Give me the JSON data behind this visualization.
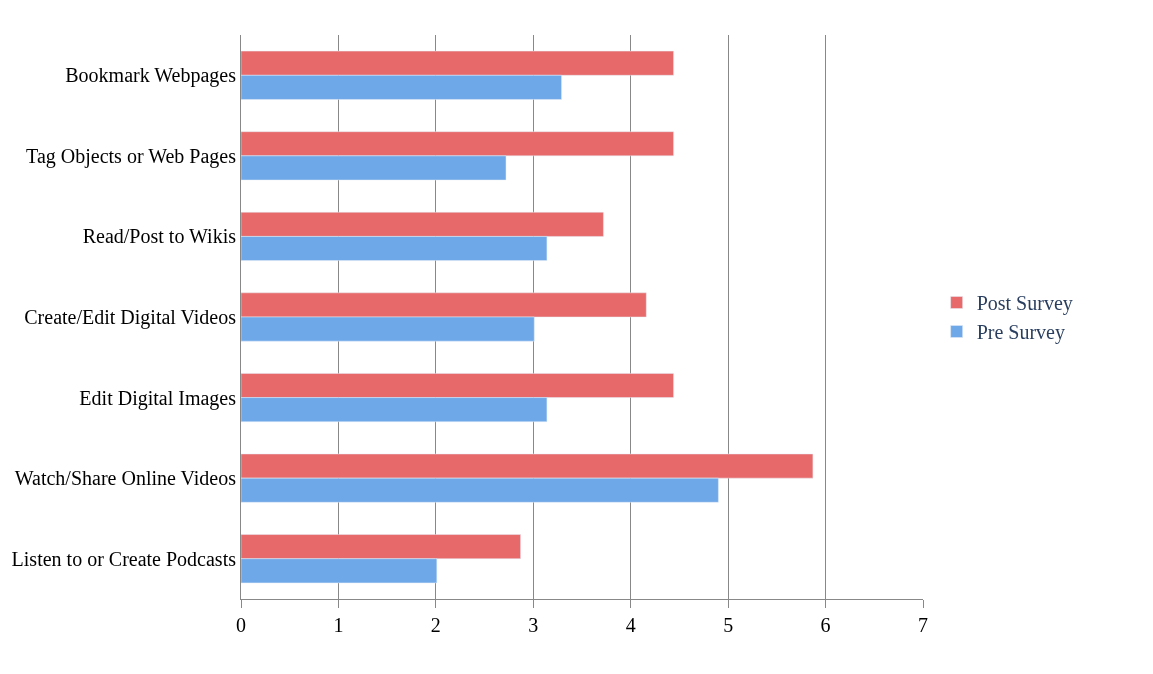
{
  "chart_data": {
    "type": "bar",
    "orientation": "horizontal",
    "categories": [
      "Bookmark Webpages",
      "Tag Objects or Web Pages",
      "Read/Post to Wikis",
      "Create/Edit Digital Videos",
      "Edit Digital Images",
      "Watch/Share Online Videos",
      "Listen to or Create Podcasts"
    ],
    "series": [
      {
        "name": "Post Survey",
        "color": "#e8696a",
        "values": [
          4.44,
          4.44,
          3.72,
          4.16,
          4.44,
          5.87,
          2.87
        ]
      },
      {
        "name": "Pre Survey",
        "color": "#6fa8e8",
        "values": [
          3.29,
          2.72,
          3.14,
          3.01,
          3.14,
          4.9,
          2.01
        ]
      }
    ],
    "xlim": [
      0,
      7
    ],
    "xticks": [
      0,
      1,
      2,
      3,
      4,
      5,
      6,
      7
    ],
    "grid": "x",
    "legend": "right"
  }
}
